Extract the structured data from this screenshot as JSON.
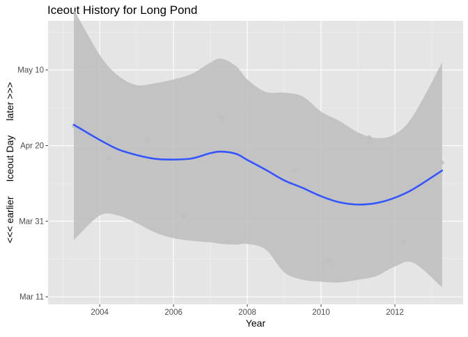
{
  "colors": {
    "panel_background": "#e5e5e5",
    "grid_major": "#ffffff",
    "grid_minor": "#f2f2f2",
    "ribbon": "#bdbdbd",
    "smooth_line": "#3355ff",
    "points": "#c2c2c2",
    "tick_text": "#4d4d4d",
    "text": "#000000"
  },
  "chart_data": {
    "type": "scatter",
    "title": "Iceout History for Long Pond",
    "xlabel": "Year",
    "ylabel": "<<< earlier      Iceout Day      later >>>",
    "ylabel_parts": [
      "<<< earlier",
      "Iceout Day",
      "later >>>"
    ],
    "xlim": [
      2002.6,
      2013.85
    ],
    "ylim_day_of_year": [
      68,
      143
    ],
    "x_ticks": [
      {
        "value": 2004,
        "label": "2004"
      },
      {
        "value": 2006,
        "label": "2006"
      },
      {
        "value": 2008,
        "label": "2008"
      },
      {
        "value": 2010,
        "label": "2010"
      },
      {
        "value": 2012,
        "label": "2012"
      }
    ],
    "y_ticks": [
      {
        "value": 70,
        "label": "Mar 11"
      },
      {
        "value": 90,
        "label": "Mar 31"
      },
      {
        "value": 110,
        "label": "Apr 20"
      },
      {
        "value": 130,
        "label": "May 10"
      }
    ],
    "grid": true,
    "legend": "none",
    "points": [
      {
        "x": 2003.3,
        "y": 115.2
      },
      {
        "x": 2004.26,
        "y": 111.4
      },
      {
        "x": 2004.26,
        "y": 106.6
      },
      {
        "x": 2005.3,
        "y": 111.4
      },
      {
        "x": 2006.28,
        "y": 91.3
      },
      {
        "x": 2007.3,
        "y": 117.3
      },
      {
        "x": 2009.26,
        "y": 103.4
      },
      {
        "x": 2010.2,
        "y": 79.6
      },
      {
        "x": 2011.3,
        "y": 112.2
      },
      {
        "x": 2012.22,
        "y": 84.6
      },
      {
        "x": 2013.28,
        "y": 105.5
      }
    ],
    "smooth": {
      "method": "loess",
      "x": [
        2003.3,
        2004.0,
        2004.5,
        2005.0,
        2005.5,
        2006.0,
        2006.5,
        2007.0,
        2007.3,
        2007.7,
        2008.0,
        2008.5,
        2009.0,
        2009.5,
        2010.0,
        2010.5,
        2011.0,
        2011.5,
        2012.0,
        2012.5,
        2013.28
      ],
      "y": [
        115.5,
        111.5,
        109.0,
        107.5,
        106.5,
        106.3,
        106.6,
        108.0,
        108.4,
        107.8,
        106.2,
        103.6,
        100.8,
        98.8,
        96.6,
        95.0,
        94.4,
        94.8,
        96.2,
        98.5,
        103.4
      ],
      "upper": [
        146.0,
        134.0,
        128.5,
        126.0,
        126.5,
        127.5,
        129.0,
        132.0,
        133.0,
        131.0,
        127.5,
        124.2,
        124.0,
        123.0,
        119.0,
        116.5,
        113.5,
        112.0,
        113.0,
        118.0,
        132.0
      ],
      "lower": [
        85.0,
        91.5,
        91.5,
        89.5,
        87.0,
        85.5,
        84.8,
        84.4,
        84.0,
        83.8,
        84.0,
        82.5,
        76.5,
        74.5,
        74.0,
        73.8,
        74.5,
        75.5,
        78.0,
        79.0,
        72.5
      ]
    }
  }
}
